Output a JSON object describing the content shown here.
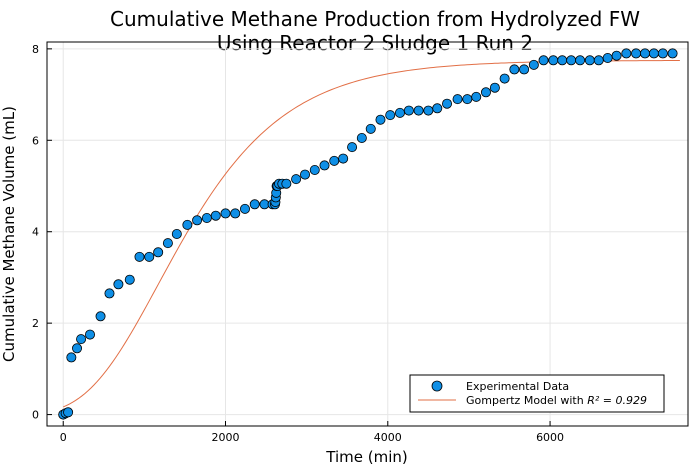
{
  "chart_data": {
    "type": "scatter",
    "title_line1": "Cumulative Methane Production from Hydrolyzed FW",
    "title_line2": "Using Reactor 2 Sludge 1 Run 2",
    "xlabel": "Time (min)",
    "ylabel": "Cumulative Methane Volume (mL)",
    "xlim": [
      -200,
      7700
    ],
    "ylim": [
      -0.25,
      8.15
    ],
    "xticks": [
      0,
      2000,
      4000,
      6000
    ],
    "yticks": [
      0,
      2,
      4,
      6,
      8
    ],
    "grid": true,
    "legend_placement": "bottom-right",
    "colors": {
      "scatter": "#0f8fe6",
      "model": "#e26f46"
    },
    "series": [
      {
        "name": "Experimental Data",
        "kind": "scatter",
        "x": [
          0,
          30,
          60,
          100,
          170,
          220,
          330,
          460,
          570,
          680,
          820,
          940,
          1060,
          1170,
          1290,
          1400,
          1530,
          1650,
          1770,
          1880,
          2000,
          2120,
          2240,
          2360,
          2480,
          2580,
          2610,
          2615,
          2620,
          2625,
          2630,
          2640,
          2660,
          2700,
          2750,
          2870,
          2980,
          3100,
          3220,
          3340,
          3450,
          3560,
          3680,
          3790,
          3910,
          4030,
          4150,
          4260,
          4380,
          4500,
          4610,
          4730,
          4860,
          4980,
          5090,
          5210,
          5320,
          5440,
          5560,
          5680,
          5800,
          5920,
          6040,
          6150,
          6260,
          6370,
          6490,
          6600,
          6710,
          6820,
          6940,
          7060,
          7170,
          7280,
          7390,
          7510
        ],
        "y": [
          0,
          0.03,
          0.05,
          1.25,
          1.45,
          1.65,
          1.75,
          2.15,
          2.65,
          2.85,
          2.95,
          3.45,
          3.45,
          3.55,
          3.75,
          3.95,
          4.15,
          4.25,
          4.3,
          4.35,
          4.4,
          4.4,
          4.5,
          4.6,
          4.6,
          4.6,
          4.6,
          4.65,
          4.75,
          4.85,
          5.0,
          5.0,
          5.05,
          5.05,
          5.05,
          5.15,
          5.25,
          5.35,
          5.45,
          5.55,
          5.6,
          5.85,
          6.05,
          6.25,
          6.45,
          6.55,
          6.6,
          6.65,
          6.65,
          6.65,
          6.7,
          6.8,
          6.9,
          6.9,
          6.95,
          7.05,
          7.15,
          7.35,
          7.55,
          7.55,
          7.65,
          7.75,
          7.75,
          7.75,
          7.75,
          7.75,
          7.75,
          7.75,
          7.8,
          7.85,
          7.9,
          7.9,
          7.9,
          7.9,
          7.9,
          7.9
        ]
      },
      {
        "name": "Gompertz Model with",
        "math_label": "R² = 0.929",
        "kind": "line",
        "model": {
          "A": 7.75,
          "mu": 0.00327,
          "lambda": 300
        },
        "x_range": [
          0,
          7600
        ]
      }
    ]
  }
}
